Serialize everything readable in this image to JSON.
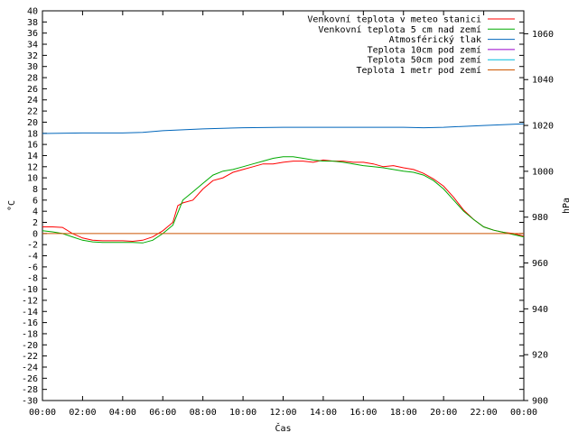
{
  "chart_data": {
    "type": "line",
    "xlabel": "Čas",
    "ylabel": "°C",
    "y2label": "hPa",
    "x_ticks": [
      "00:00",
      "02:00",
      "04:00",
      "06:00",
      "08:00",
      "10:00",
      "12:00",
      "14:00",
      "16:00",
      "18:00",
      "20:00",
      "22:00",
      "00:00"
    ],
    "x_range_hours": [
      0,
      24
    ],
    "ylim": [
      -30,
      40
    ],
    "y_ticks": [
      -30,
      -28,
      -26,
      -24,
      -22,
      -20,
      -18,
      -16,
      -14,
      -12,
      -10,
      -8,
      -6,
      -4,
      -2,
      0,
      2,
      4,
      6,
      8,
      10,
      12,
      14,
      16,
      18,
      20,
      22,
      24,
      26,
      28,
      30,
      32,
      34,
      36,
      38,
      40
    ],
    "y2lim": [
      900,
      1070
    ],
    "y2_ticks": [
      900,
      920,
      940,
      960,
      980,
      1000,
      1020,
      1040,
      1060
    ],
    "grid": false,
    "legend_position": "top-right",
    "series": [
      {
        "name": "Venkovní teplota v meteo stanici",
        "color": "#ff0000",
        "axis": "left",
        "x": [
          0,
          0.5,
          1,
          1.5,
          2,
          2.5,
          3,
          3.5,
          4,
          4.5,
          5,
          5.5,
          6,
          6.5,
          6.75,
          7,
          7.5,
          8,
          8.5,
          9,
          9.5,
          10,
          10.5,
          11,
          11.5,
          12,
          12.5,
          13,
          13.5,
          14,
          14.5,
          15,
          15.5,
          16,
          16.5,
          17,
          17.5,
          18,
          18.5,
          19,
          19.5,
          20,
          20.5,
          21,
          21.5,
          22,
          22.5,
          23,
          23.5,
          24
        ],
        "y": [
          1.2,
          1.2,
          1.1,
          0,
          -0.8,
          -1.2,
          -1.3,
          -1.3,
          -1.3,
          -1.4,
          -1.2,
          -0.6,
          0.5,
          2,
          5,
          5.5,
          6,
          8,
          9.5,
          10,
          11,
          11.5,
          12,
          12.5,
          12.5,
          12.8,
          13,
          13,
          12.8,
          13.2,
          13,
          13,
          12.8,
          12.8,
          12.5,
          12,
          12.2,
          11.8,
          11.5,
          10.8,
          9.8,
          8.5,
          6.5,
          4.2,
          2.5,
          1.2,
          0.6,
          0.2,
          0,
          -0.5
        ]
      },
      {
        "name": "Venkovní teplota 5 cm nad zemí",
        "color": "#00aa00",
        "axis": "left",
        "x": [
          0,
          0.5,
          1,
          1.5,
          2,
          2.5,
          3,
          3.5,
          4,
          4.5,
          5,
          5.5,
          6,
          6.5,
          7,
          7.5,
          8,
          8.5,
          9,
          9.5,
          10,
          10.5,
          11,
          11.5,
          12,
          12.5,
          13,
          13.5,
          14,
          14.5,
          15,
          15.5,
          16,
          16.5,
          17,
          17.5,
          18,
          18.5,
          19,
          19.5,
          20,
          20.5,
          21,
          21.5,
          22,
          22.5,
          23,
          23.5,
          24
        ],
        "y": [
          0.5,
          0.3,
          0,
          -0.6,
          -1.2,
          -1.5,
          -1.6,
          -1.6,
          -1.6,
          -1.6,
          -1.7,
          -1.2,
          0,
          1.5,
          6,
          7.5,
          9,
          10.5,
          11.2,
          11.5,
          12,
          12.5,
          13,
          13.5,
          13.8,
          13.8,
          13.5,
          13.2,
          13,
          13,
          12.8,
          12.5,
          12.2,
          12,
          11.8,
          11.5,
          11.2,
          11,
          10.5,
          9.5,
          8,
          6,
          4,
          2.5,
          1.2,
          0.6,
          0.2,
          -0.2,
          -0.6
        ]
      },
      {
        "name": "Atmosférický tlak",
        "color": "#0066bb",
        "axis": "right",
        "x": [
          0,
          2,
          4,
          5,
          6,
          8,
          10,
          12,
          14,
          16,
          18,
          19,
          20,
          22,
          24
        ],
        "y": [
          1016.5,
          1016.7,
          1016.7,
          1017,
          1017.7,
          1018.5,
          1019,
          1019.2,
          1019.2,
          1019.2,
          1019.2,
          1019,
          1019.2,
          1020,
          1020.7
        ]
      },
      {
        "name": "Teplota 10cm pod zemí",
        "color": "#9900cc",
        "axis": "left",
        "x": [],
        "y": []
      },
      {
        "name": "Teplota 50cm pod zemí",
        "color": "#00bbdd",
        "axis": "left",
        "x": [],
        "y": []
      },
      {
        "name": "Teplota 1 metr pod zemí",
        "color": "#cc5500",
        "axis": "left",
        "x": [
          0,
          24
        ],
        "y": [
          0,
          0
        ]
      }
    ]
  }
}
